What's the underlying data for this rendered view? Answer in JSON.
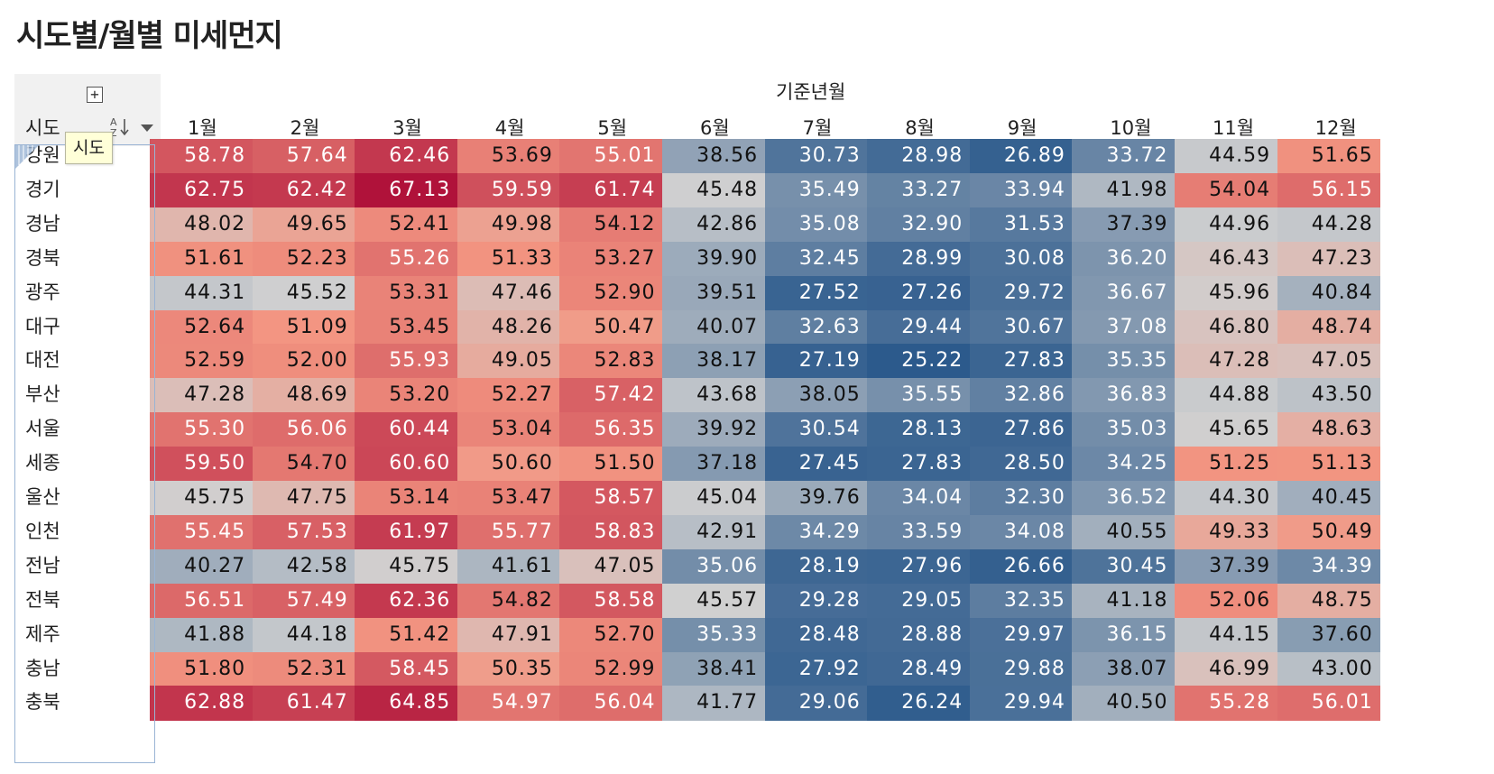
{
  "title": "시도별/월별 미세먼지",
  "controls": {
    "expand_symbol": "+",
    "sort_icon": "sort-alpha-icon",
    "dropdown_icon": "chevron-down-icon",
    "tooltip_text": "시도"
  },
  "colors": {
    "low": "#2c5a8c",
    "mid": "#d0d0d0",
    "high": "#b0123a"
  },
  "chart_data": {
    "type": "heatmap",
    "row_field": "시도",
    "column_field": "기준년월",
    "columns": [
      "1월",
      "2월",
      "3월",
      "4월",
      "5월",
      "6월",
      "7월",
      "8월",
      "9월",
      "10월",
      "11월",
      "12월"
    ],
    "rows": [
      "강원",
      "경기",
      "경남",
      "경북",
      "광주",
      "대구",
      "대전",
      "부산",
      "서울",
      "세종",
      "울산",
      "인천",
      "전남",
      "전북",
      "제주",
      "충남",
      "충북"
    ],
    "values": [
      [
        "58.78",
        "57.64",
        "62.46",
        "53.69",
        "55.01",
        "38.56",
        "30.73",
        "28.98",
        "26.89",
        "33.72",
        "44.59",
        "51.65"
      ],
      [
        "62.75",
        "62.42",
        "67.13",
        "59.59",
        "61.74",
        "45.48",
        "35.49",
        "33.27",
        "33.94",
        "41.98",
        "54.04",
        "56.15"
      ],
      [
        "48.02",
        "49.65",
        "52.41",
        "49.98",
        "54.12",
        "42.86",
        "35.08",
        "32.90",
        "31.53",
        "37.39",
        "44.96",
        "44.28"
      ],
      [
        "51.61",
        "52.23",
        "55.26",
        "51.33",
        "53.27",
        "39.90",
        "32.45",
        "28.99",
        "30.08",
        "36.20",
        "46.43",
        "47.23"
      ],
      [
        "44.31",
        "45.52",
        "53.31",
        "47.46",
        "52.90",
        "39.51",
        "27.52",
        "27.26",
        "29.72",
        "36.67",
        "45.96",
        "40.84"
      ],
      [
        "52.64",
        "51.09",
        "53.45",
        "48.26",
        "50.47",
        "40.07",
        "32.63",
        "29.44",
        "30.67",
        "37.08",
        "46.80",
        "48.74"
      ],
      [
        "52.59",
        "52.00",
        "55.93",
        "49.05",
        "52.83",
        "38.17",
        "27.19",
        "25.22",
        "27.83",
        "35.35",
        "47.28",
        "47.05"
      ],
      [
        "47.28",
        "48.69",
        "53.20",
        "52.27",
        "57.42",
        "43.68",
        "38.05",
        "35.55",
        "32.86",
        "36.83",
        "44.88",
        "43.50"
      ],
      [
        "55.30",
        "56.06",
        "60.44",
        "53.04",
        "56.35",
        "39.92",
        "30.54",
        "28.13",
        "27.86",
        "35.03",
        "45.65",
        "48.63"
      ],
      [
        "59.50",
        "54.70",
        "60.60",
        "50.60",
        "51.50",
        "37.18",
        "27.45",
        "27.83",
        "28.50",
        "34.25",
        "51.25",
        "51.13"
      ],
      [
        "45.75",
        "47.75",
        "53.14",
        "53.47",
        "58.57",
        "45.04",
        "39.76",
        "34.04",
        "32.30",
        "36.52",
        "44.30",
        "40.45"
      ],
      [
        "55.45",
        "57.53",
        "61.97",
        "55.77",
        "58.83",
        "42.91",
        "34.29",
        "33.59",
        "34.08",
        "40.55",
        "49.33",
        "50.49"
      ],
      [
        "40.27",
        "42.58",
        "45.75",
        "41.61",
        "47.05",
        "35.06",
        "28.19",
        "27.96",
        "26.66",
        "30.45",
        "37.39",
        "34.39"
      ],
      [
        "56.51",
        "57.49",
        "62.36",
        "54.82",
        "58.58",
        "45.57",
        "29.28",
        "29.05",
        "32.35",
        "41.18",
        "52.06",
        "48.75"
      ],
      [
        "41.88",
        "44.18",
        "51.42",
        "47.91",
        "52.70",
        "35.33",
        "28.48",
        "28.88",
        "29.97",
        "36.15",
        "44.15",
        "37.60"
      ],
      [
        "51.80",
        "52.31",
        "58.45",
        "50.35",
        "52.99",
        "38.41",
        "27.92",
        "28.49",
        "29.88",
        "38.07",
        "46.99",
        "43.00"
      ],
      [
        "62.88",
        "61.47",
        "64.85",
        "54.97",
        "56.04",
        "41.77",
        "29.06",
        "26.24",
        "29.94",
        "40.50",
        "55.28",
        "56.01"
      ]
    ],
    "color_scale": {
      "min": 25.22,
      "mid": 45.6,
      "max": 67.13
    }
  }
}
